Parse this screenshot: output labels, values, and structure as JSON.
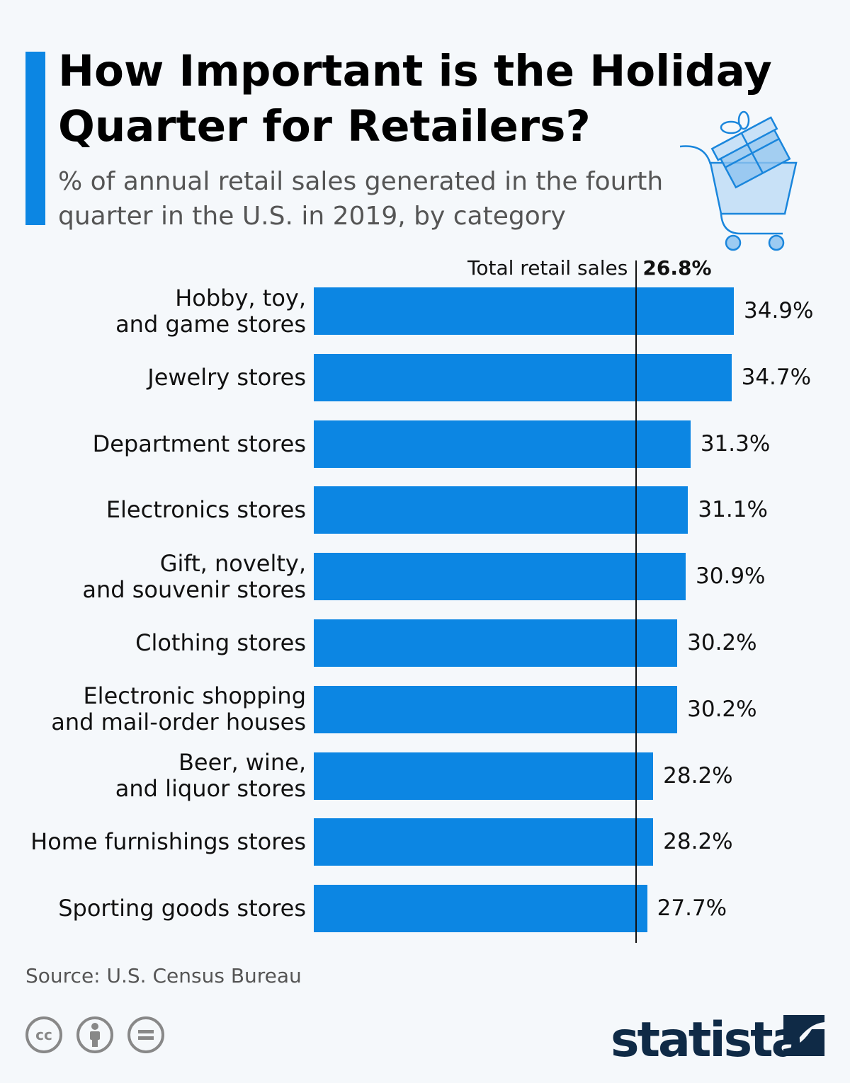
{
  "header": {
    "title": "How Important is the Holiday Quarter for Retailers?",
    "subtitle": "% of annual retail sales generated in the fourth quarter in the U.S. in 2019, by category",
    "accent_color": "#0c86e3",
    "illustration": "shopping-cart-with-gift-icon"
  },
  "chart_data": {
    "type": "bar",
    "orientation": "horizontal",
    "title": "How Important is the Holiday Quarter for Retailers?",
    "categories": [
      "Hobby, toy,\nand game stores",
      "Jewelry stores",
      "Department stores",
      "Electronics stores",
      "Gift, novelty,\nand souvenir stores",
      "Clothing stores",
      "Electronic shopping\nand mail-order houses",
      "Beer, wine,\nand liquor stores",
      "Home furnishings stores",
      "Sporting goods stores"
    ],
    "values": [
      34.9,
      34.7,
      31.3,
      31.1,
      30.9,
      30.2,
      30.2,
      28.2,
      28.2,
      27.7
    ],
    "value_labels": [
      "34.9%",
      "34.7%",
      "31.3%",
      "31.1%",
      "30.9%",
      "30.2%",
      "30.2%",
      "28.2%",
      "28.2%",
      "27.7%"
    ],
    "unit": "%",
    "xlim": [
      0,
      34.9
    ],
    "bar_color": "#0c86e3",
    "reference_line": {
      "label": "Total retail sales",
      "value": 26.8,
      "value_label": "26.8%"
    },
    "grid": false
  },
  "footer": {
    "source": "Source: U.S. Census Bureau",
    "license_icons": [
      "cc-icon",
      "attribution-icon",
      "no-derivatives-icon"
    ],
    "brand": "statista"
  }
}
